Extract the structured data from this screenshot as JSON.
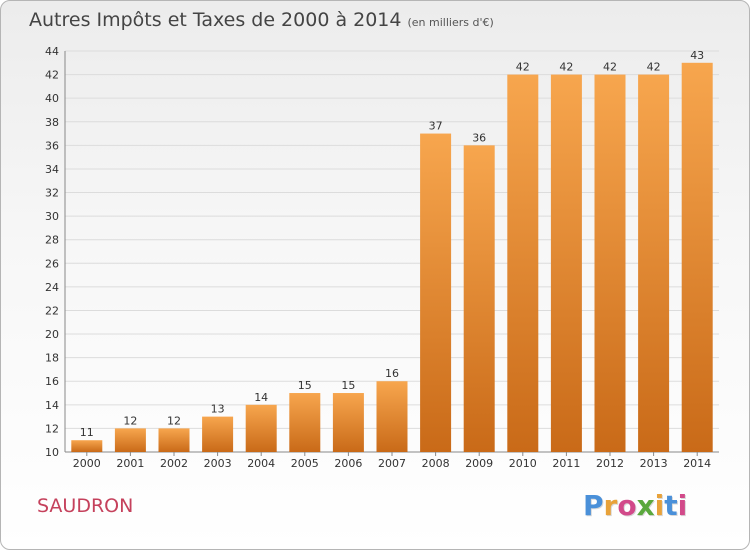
{
  "title": {
    "main": "Autres Impôts et Taxes de 2000 à 2014",
    "unit": "(en milliers d'€)"
  },
  "commune": "SAUDRON",
  "logo": {
    "text": "Proxiti",
    "letter_colors": [
      "#4a90d9",
      "#e8a23a",
      "#d24a8a",
      "#5aa83c",
      "#e8a23a",
      "#4a90d9",
      "#d24a8a"
    ]
  },
  "colors": {
    "bar_light": "#f7a64e",
    "bar_dark": "#c96a18",
    "grid": "#dcdcdc",
    "axis_text": "#333333"
  },
  "chart_data": {
    "type": "bar",
    "categories": [
      "2000",
      "2001",
      "2002",
      "2003",
      "2004",
      "2005",
      "2006",
      "2007",
      "2008",
      "2009",
      "2010",
      "2011",
      "2012",
      "2013",
      "2014"
    ],
    "values": [
      11,
      12,
      12,
      13,
      14,
      15,
      15,
      16,
      37,
      36,
      42,
      42,
      42,
      42,
      43
    ],
    "data_labels": [
      "11",
      "12",
      "12",
      "13",
      "14",
      "15",
      "15",
      "16",
      "37",
      "36",
      "42",
      "42",
      "42",
      "42",
      "43"
    ],
    "ylim": [
      10,
      44
    ],
    "yticks": [
      10,
      12,
      14,
      16,
      18,
      20,
      22,
      24,
      26,
      28,
      30,
      32,
      34,
      36,
      38,
      40,
      42,
      44
    ],
    "grid": true,
    "legend": "none"
  }
}
